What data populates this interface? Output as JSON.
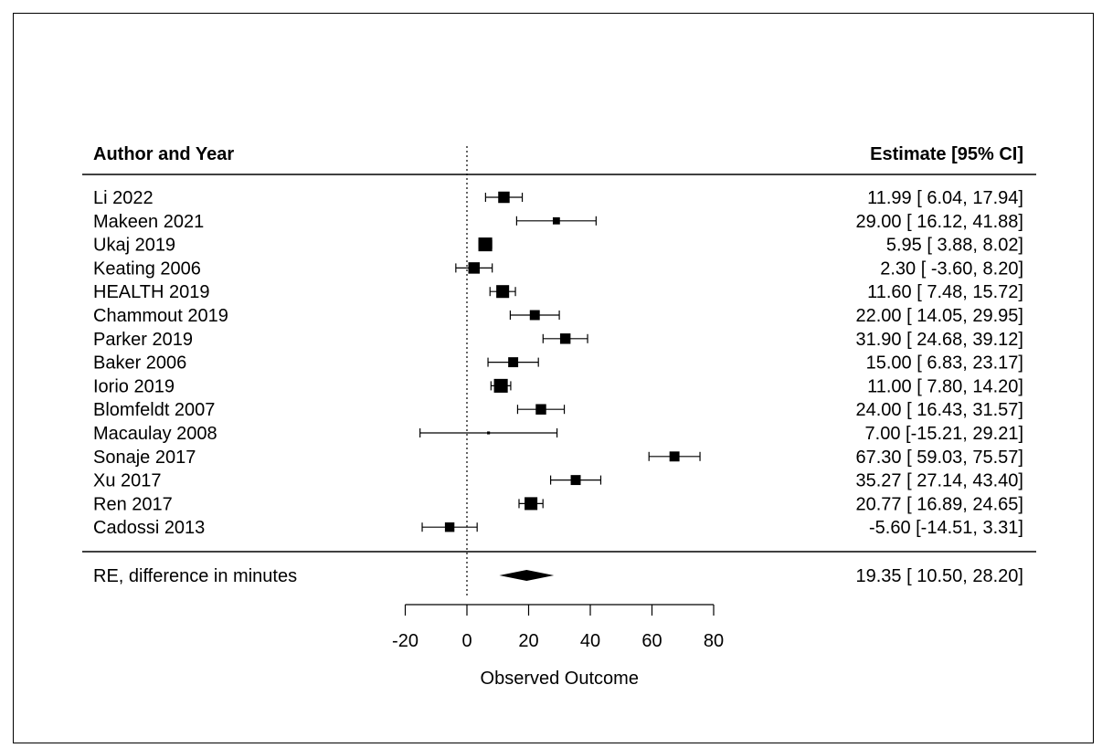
{
  "chart_data": {
    "type": "forest",
    "columns": {
      "left_header": "Author and Year",
      "right_header": "Estimate [95% CI]"
    },
    "studies": [
      {
        "label": "Li 2022",
        "estimate": 11.99,
        "lower": 6.04,
        "upper": 17.94,
        "text": "11.99 [ 6.04, 17.94]",
        "weight": 2.4
      },
      {
        "label": "Makeen 2021",
        "estimate": 29.0,
        "lower": 16.12,
        "upper": 41.88,
        "text": "29.00 [ 16.12, 41.88]",
        "weight": 1.5
      },
      {
        "label": "Ukaj 2019",
        "estimate": 5.95,
        "lower": 3.88,
        "upper": 8.02,
        "text": "5.95 [ 3.88, 8.02]",
        "weight": 2.9
      },
      {
        "label": "Keating 2006",
        "estimate": 2.3,
        "lower": -3.6,
        "upper": 8.2,
        "text": "2.30 [ -3.60, 8.20]",
        "weight": 2.4
      },
      {
        "label": "HEALTH 2019",
        "estimate": 11.6,
        "lower": 7.48,
        "upper": 15.72,
        "text": "11.60 [ 7.48, 15.72]",
        "weight": 2.7
      },
      {
        "label": "Chammout 2019",
        "estimate": 22.0,
        "lower": 14.05,
        "upper": 29.95,
        "text": "22.00 [ 14.05, 29.95]",
        "weight": 2.1
      },
      {
        "label": "Parker 2019",
        "estimate": 31.9,
        "lower": 24.68,
        "upper": 39.12,
        "text": "31.90 [ 24.68, 39.12]",
        "weight": 2.2
      },
      {
        "label": "Baker 2006",
        "estimate": 15.0,
        "lower": 6.83,
        "upper": 23.17,
        "text": "15.00 [ 6.83, 23.17]",
        "weight": 2.1
      },
      {
        "label": "Iorio 2019",
        "estimate": 11.0,
        "lower": 7.8,
        "upper": 14.2,
        "text": "11.00 [ 7.80, 14.20]",
        "weight": 2.9
      },
      {
        "label": "Blomfeldt 2007",
        "estimate": 24.0,
        "lower": 16.43,
        "upper": 31.57,
        "text": "24.00 [ 16.43, 31.57]",
        "weight": 2.2
      },
      {
        "label": "Macaulay 2008",
        "estimate": 7.0,
        "lower": -15.21,
        "upper": 29.21,
        "text": "7.00 [-15.21, 29.21]",
        "weight": 0.6
      },
      {
        "label": "Sonaje 2017",
        "estimate": 67.3,
        "lower": 59.03,
        "upper": 75.57,
        "text": "67.30 [ 59.03, 75.57]",
        "weight": 2.1
      },
      {
        "label": "Xu 2017",
        "estimate": 35.27,
        "lower": 27.14,
        "upper": 43.4,
        "text": "35.27 [ 27.14, 43.40]",
        "weight": 2.1
      },
      {
        "label": "Ren 2017",
        "estimate": 20.77,
        "lower": 16.89,
        "upper": 24.65,
        "text": "20.77 [ 16.89, 24.65]",
        "weight": 2.7
      },
      {
        "label": "Cadossi 2013",
        "estimate": -5.6,
        "lower": -14.51,
        "upper": 3.31,
        "text": "-5.60 [-14.51, 3.31]",
        "weight": 2.0
      }
    ],
    "summary": {
      "label": "RE, difference in minutes",
      "estimate": 19.35,
      "lower": 10.5,
      "upper": 28.2,
      "text": "19.35 [ 10.50, 28.20]"
    },
    "reference_line": 0,
    "xaxis": {
      "label": "Observed Outcome",
      "range": [
        -20,
        80
      ],
      "ticks": [
        -20,
        0,
        20,
        40,
        60,
        80
      ],
      "tick_labels": [
        "-20",
        "0",
        "20",
        "40",
        "60",
        "80"
      ]
    },
    "colors": {
      "marker": "#000000",
      "line": "#000000",
      "background": "#ffffff"
    }
  }
}
